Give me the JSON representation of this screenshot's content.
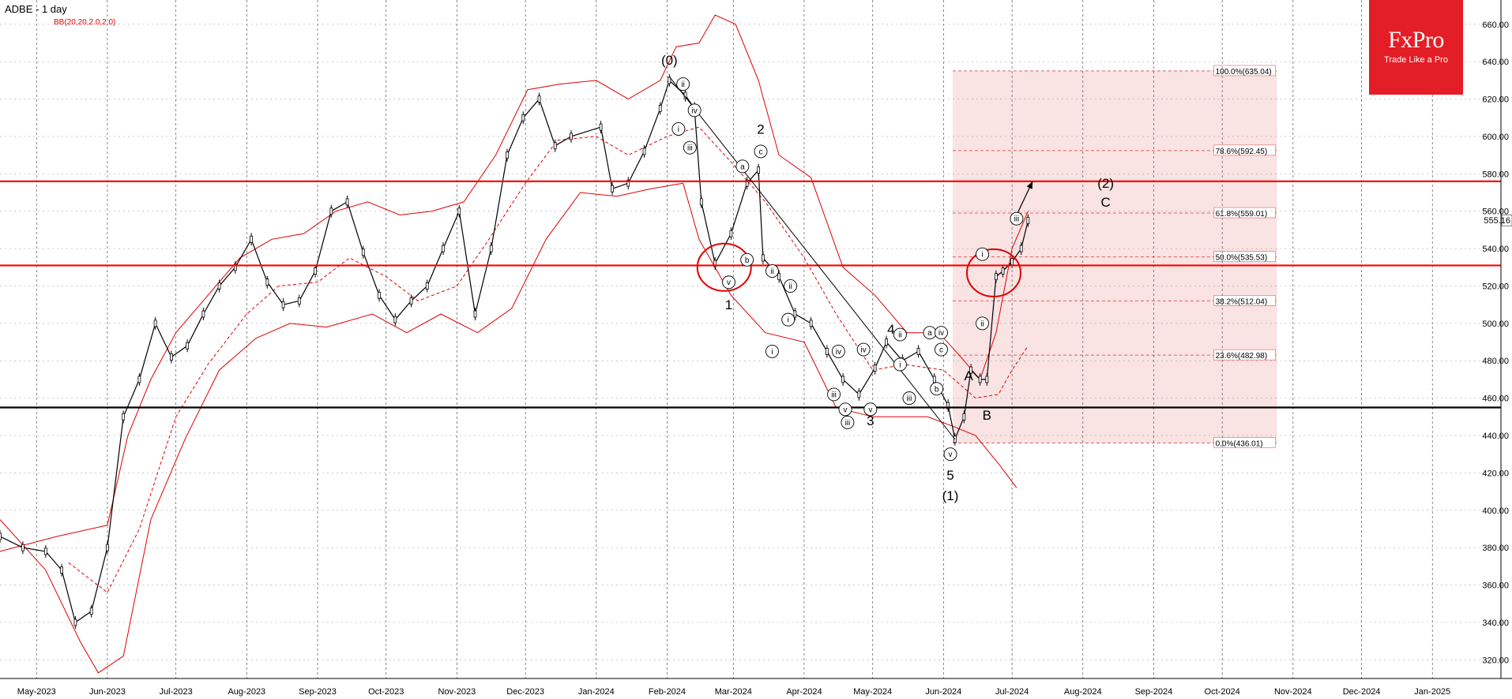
{
  "header": {
    "title": "ADBE - 1 day",
    "indicator": "BB(20,20,2.0,2.0)"
  },
  "logo": {
    "name": "FxPro",
    "tagline": "Trade Like a Pro"
  },
  "colors": {
    "price": "#000000",
    "bands": "#e00000",
    "fib_zone": "#f8dede",
    "level": "#ff0000",
    "support": "#000000"
  },
  "chart_data": {
    "type": "line",
    "title": "ADBE - 1 day",
    "indicator": "BB(20,20,2.0,2.0)",
    "x_axis": {
      "labels": [
        "May-2023",
        "Jun-2023",
        "Jul-2023",
        "Aug-2023",
        "Sep-2023",
        "Oct-2023",
        "Nov-2023",
        "Dec-2023",
        "Jan-2024",
        "Feb-2024",
        "Mar-2024",
        "Apr-2024",
        "May-2024",
        "Jun-2024",
        "Jul-2024",
        "Aug-2024",
        "Sep-2024",
        "Oct-2024",
        "Nov-2024",
        "Dec-2024",
        "Jan-2025"
      ],
      "range": [
        "2023-04-15",
        "2025-01-31"
      ]
    },
    "y_axis": {
      "ticks": [
        320,
        340,
        360,
        380,
        400,
        420,
        440,
        460,
        480,
        500,
        520,
        540,
        560,
        580,
        600,
        620,
        640,
        660
      ],
      "range": [
        310,
        673
      ],
      "tick_format": "{v}.00",
      "side": "right"
    },
    "grid": true,
    "last_price": {
      "value": 555.16,
      "label": "555.16"
    },
    "series": [
      {
        "kind": "price",
        "points": [
          [
            "2023-04-15",
            386
          ],
          [
            "2023-04-25",
            380
          ],
          [
            "2023-05-05",
            378
          ],
          [
            "2023-05-12",
            368
          ],
          [
            "2023-05-18",
            340
          ],
          [
            "2023-05-25",
            346
          ],
          [
            "2023-06-01",
            380
          ],
          [
            "2023-06-08",
            450
          ],
          [
            "2023-06-15",
            470
          ],
          [
            "2023-06-22",
            500
          ],
          [
            "2023-06-29",
            482
          ],
          [
            "2023-07-06",
            488
          ],
          [
            "2023-07-13",
            505
          ],
          [
            "2023-07-20",
            520
          ],
          [
            "2023-07-27",
            530
          ],
          [
            "2023-08-03",
            545
          ],
          [
            "2023-08-10",
            522
          ],
          [
            "2023-08-17",
            510
          ],
          [
            "2023-08-24",
            512
          ],
          [
            "2023-08-31",
            528
          ],
          [
            "2023-09-07",
            560
          ],
          [
            "2023-09-14",
            565
          ],
          [
            "2023-09-21",
            538
          ],
          [
            "2023-09-28",
            515
          ],
          [
            "2023-10-05",
            502
          ],
          [
            "2023-10-12",
            512
          ],
          [
            "2023-10-19",
            520
          ],
          [
            "2023-10-26",
            540
          ],
          [
            "2023-11-02",
            560
          ],
          [
            "2023-11-09",
            505
          ],
          [
            "2023-11-16",
            540
          ],
          [
            "2023-11-23",
            590
          ],
          [
            "2023-11-30",
            610
          ],
          [
            "2023-12-07",
            620
          ],
          [
            "2023-12-14",
            595
          ],
          [
            "2023-12-21",
            600
          ],
          [
            "2024-01-03",
            605
          ],
          [
            "2024-01-08",
            572
          ],
          [
            "2024-01-15",
            575
          ],
          [
            "2024-01-22",
            592
          ],
          [
            "2024-01-29",
            615
          ],
          [
            "2024-02-02",
            630
          ],
          [
            "2024-02-09",
            622
          ],
          [
            "2024-02-13",
            615
          ],
          [
            "2024-02-16",
            565
          ],
          [
            "2024-02-22",
            532
          ],
          [
            "2024-02-29",
            548
          ],
          [
            "2024-03-07",
            575
          ],
          [
            "2024-03-12",
            582
          ],
          [
            "2024-03-14",
            535
          ],
          [
            "2024-03-21",
            525
          ],
          [
            "2024-03-28",
            505
          ],
          [
            "2024-04-04",
            500
          ],
          [
            "2024-04-11",
            485
          ],
          [
            "2024-04-18",
            470
          ],
          [
            "2024-04-25",
            462
          ],
          [
            "2024-05-02",
            476
          ],
          [
            "2024-05-07",
            490
          ],
          [
            "2024-05-14",
            480
          ],
          [
            "2024-05-21",
            485
          ],
          [
            "2024-05-28",
            470
          ],
          [
            "2024-06-03",
            456
          ],
          [
            "2024-06-06",
            438
          ],
          [
            "2024-06-10",
            450
          ],
          [
            "2024-06-13",
            475
          ],
          [
            "2024-06-17",
            470
          ],
          [
            "2024-06-20",
            470
          ],
          [
            "2024-06-24",
            525
          ],
          [
            "2024-06-27",
            528
          ],
          [
            "2024-07-01",
            533
          ],
          [
            "2024-07-05",
            540
          ],
          [
            "2024-07-08",
            555
          ]
        ]
      },
      {
        "kind": "upper_band",
        "points": [
          [
            "2023-04-15",
            378
          ],
          [
            "2023-05-10",
            386
          ],
          [
            "2023-06-01",
            392
          ],
          [
            "2023-06-10",
            440
          ],
          [
            "2023-06-20",
            470
          ],
          [
            "2023-07-01",
            495
          ],
          [
            "2023-07-15",
            515
          ],
          [
            "2023-07-29",
            535
          ],
          [
            "2023-08-12",
            545
          ],
          [
            "2023-08-26",
            548
          ],
          [
            "2023-09-09",
            560
          ],
          [
            "2023-09-23",
            565
          ],
          [
            "2023-10-07",
            558
          ],
          [
            "2023-10-21",
            560
          ],
          [
            "2023-11-04",
            565
          ],
          [
            "2023-11-18",
            590
          ],
          [
            "2023-12-02",
            625
          ],
          [
            "2023-12-16",
            628
          ],
          [
            "2024-01-01",
            630
          ],
          [
            "2024-01-15",
            620
          ],
          [
            "2024-01-29",
            630
          ],
          [
            "2024-02-05",
            648
          ],
          [
            "2024-02-15",
            650
          ],
          [
            "2024-02-22",
            665
          ],
          [
            "2024-03-02",
            660
          ],
          [
            "2024-03-12",
            630
          ],
          [
            "2024-03-21",
            590
          ],
          [
            "2024-04-04",
            578
          ],
          [
            "2024-04-18",
            530
          ],
          [
            "2024-05-02",
            515
          ],
          [
            "2024-05-16",
            495
          ],
          [
            "2024-05-30",
            495
          ],
          [
            "2024-06-10",
            480
          ],
          [
            "2024-06-17",
            470
          ],
          [
            "2024-06-24",
            495
          ],
          [
            "2024-07-01",
            540
          ],
          [
            "2024-07-08",
            560
          ]
        ]
      },
      {
        "kind": "middle_band",
        "points": [
          [
            "2023-05-15",
            372
          ],
          [
            "2023-06-01",
            356
          ],
          [
            "2023-06-15",
            390
          ],
          [
            "2023-07-01",
            450
          ],
          [
            "2023-07-15",
            478
          ],
          [
            "2023-08-01",
            505
          ],
          [
            "2023-08-15",
            520
          ],
          [
            "2023-09-01",
            522
          ],
          [
            "2023-09-15",
            535
          ],
          [
            "2023-10-01",
            525
          ],
          [
            "2023-10-15",
            512
          ],
          [
            "2023-11-01",
            520
          ],
          [
            "2023-11-15",
            545
          ],
          [
            "2023-12-01",
            575
          ],
          [
            "2023-12-15",
            598
          ],
          [
            "2024-01-01",
            600
          ],
          [
            "2024-01-15",
            590
          ],
          [
            "2024-02-01",
            600
          ],
          [
            "2024-02-15",
            605
          ],
          [
            "2024-03-01",
            585
          ],
          [
            "2024-03-15",
            565
          ],
          [
            "2024-04-01",
            535
          ],
          [
            "2024-04-15",
            505
          ],
          [
            "2024-05-01",
            475
          ],
          [
            "2024-05-15",
            478
          ],
          [
            "2024-06-01",
            475
          ],
          [
            "2024-06-15",
            460
          ],
          [
            "2024-06-25",
            462
          ],
          [
            "2024-07-01",
            475
          ],
          [
            "2024-07-08",
            488
          ]
        ]
      },
      {
        "kind": "lower_band",
        "points": [
          [
            "2023-04-15",
            395
          ],
          [
            "2023-05-05",
            368
          ],
          [
            "2023-05-20",
            330
          ],
          [
            "2023-05-28",
            313
          ],
          [
            "2023-06-08",
            322
          ],
          [
            "2023-06-20",
            395
          ],
          [
            "2023-07-05",
            438
          ],
          [
            "2023-07-20",
            475
          ],
          [
            "2023-08-05",
            492
          ],
          [
            "2023-08-20",
            500
          ],
          [
            "2023-09-05",
            498
          ],
          [
            "2023-09-25",
            505
          ],
          [
            "2023-10-10",
            495
          ],
          [
            "2023-10-25",
            505
          ],
          [
            "2023-11-10",
            495
          ],
          [
            "2023-11-25",
            508
          ],
          [
            "2023-12-10",
            545
          ],
          [
            "2023-12-25",
            570
          ],
          [
            "2024-01-10",
            568
          ],
          [
            "2024-01-25",
            572
          ],
          [
            "2024-02-08",
            575
          ],
          [
            "2024-02-15",
            545
          ],
          [
            "2024-02-29",
            515
          ],
          [
            "2024-03-15",
            495
          ],
          [
            "2024-04-01",
            490
          ],
          [
            "2024-04-15",
            455
          ],
          [
            "2024-05-01",
            450
          ],
          [
            "2024-05-15",
            450
          ],
          [
            "2024-05-25",
            450
          ],
          [
            "2024-06-05",
            445
          ],
          [
            "2024-06-15",
            440
          ],
          [
            "2024-06-25",
            425
          ],
          [
            "2024-07-03",
            412
          ]
        ]
      }
    ],
    "horizontal_levels": [
      {
        "value": 576,
        "color": "#ff0000"
      },
      {
        "value": 531,
        "color": "#ff0000"
      },
      {
        "value": 455,
        "color": "#000000"
      }
    ],
    "fib_zone": {
      "start": "2024-06-05",
      "end": "2024-10-25",
      "from": 436.01,
      "to": 635.04,
      "levels": [
        {
          "value": 635.04,
          "label": "100.0%(635.04)"
        },
        {
          "value": 592.45,
          "label": "78.6%(592.45)"
        },
        {
          "value": 559.01,
          "label": "61.8%(559.01)"
        },
        {
          "value": 535.53,
          "label": "50.0%(535.53)"
        },
        {
          "value": 512.04,
          "label": "38.2%(512.04)"
        },
        {
          "value": 482.98,
          "label": "23.6%(482.98)"
        },
        {
          "value": 436.01,
          "label": "0.0%(436.01)"
        }
      ]
    },
    "trendline": {
      "from": [
        "2024-02-02",
        632
      ],
      "to": [
        "2024-06-06",
        438
      ]
    },
    "arrow": {
      "from": [
        "2024-07-03",
        558
      ],
      "to": [
        "2024-07-10",
        576
      ]
    },
    "highlight_circles": [
      {
        "x": "2024-02-26",
        "y": 530
      },
      {
        "x": "2024-06-23",
        "y": 527
      }
    ],
    "wave_labels": [
      {
        "text": "(0)",
        "x": "2024-02-02",
        "y": 641,
        "style": "plain"
      },
      {
        "text": "ii",
        "x": "2024-02-08",
        "y": 628,
        "style": "circle"
      },
      {
        "text": "iv",
        "x": "2024-02-13",
        "y": 614,
        "style": "circle"
      },
      {
        "text": "i",
        "x": "2024-02-06",
        "y": 604,
        "style": "circle"
      },
      {
        "text": "iii",
        "x": "2024-02-11",
        "y": 594,
        "style": "circle"
      },
      {
        "text": "v",
        "x": "2024-02-28",
        "y": 522,
        "style": "circle"
      },
      {
        "text": "1",
        "x": "2024-02-28",
        "y": 510,
        "style": "plain"
      },
      {
        "text": "2",
        "x": "2024-03-13",
        "y": 604,
        "style": "plain"
      },
      {
        "text": "c",
        "x": "2024-03-13",
        "y": 592,
        "style": "circle"
      },
      {
        "text": "a",
        "x": "2024-03-05",
        "y": 584,
        "style": "circle"
      },
      {
        "text": "b",
        "x": "2024-03-07",
        "y": 534,
        "style": "circle"
      },
      {
        "text": "ii",
        "x": "2024-03-18",
        "y": 528,
        "style": "circle"
      },
      {
        "text": "ii",
        "x": "2024-03-26",
        "y": 520,
        "style": "circle"
      },
      {
        "text": "i",
        "x": "2024-03-25",
        "y": 502,
        "style": "circle"
      },
      {
        "text": "i",
        "x": "2024-03-18",
        "y": 485,
        "style": "circle"
      },
      {
        "text": "iv",
        "x": "2024-04-16",
        "y": 485,
        "style": "circle"
      },
      {
        "text": "iv",
        "x": "2024-04-27",
        "y": 486,
        "style": "circle"
      },
      {
        "text": "iii",
        "x": "2024-04-14",
        "y": 462,
        "style": "circle"
      },
      {
        "text": "v",
        "x": "2024-04-19",
        "y": 454,
        "style": "circle"
      },
      {
        "text": "iii",
        "x": "2024-04-20",
        "y": 447,
        "style": "circle"
      },
      {
        "text": "v",
        "x": "2024-04-30",
        "y": 454,
        "style": "circle"
      },
      {
        "text": "3",
        "x": "2024-04-30",
        "y": 448,
        "style": "plain"
      },
      {
        "text": "4",
        "x": "2024-05-09",
        "y": 497,
        "style": "plain"
      },
      {
        "text": "ii",
        "x": "2024-05-13",
        "y": 494,
        "style": "circle"
      },
      {
        "text": "i",
        "x": "2024-05-13",
        "y": 478,
        "style": "circle"
      },
      {
        "text": "iii",
        "x": "2024-05-17",
        "y": 460,
        "style": "circle"
      },
      {
        "text": "a",
        "x": "2024-05-26",
        "y": 495,
        "style": "circle"
      },
      {
        "text": "iv",
        "x": "2024-05-31",
        "y": 495,
        "style": "circle"
      },
      {
        "text": "c",
        "x": "2024-05-31",
        "y": 486,
        "style": "circle"
      },
      {
        "text": "b",
        "x": "2024-05-29",
        "y": 465,
        "style": "circle"
      },
      {
        "text": "A",
        "x": "2024-06-12",
        "y": 472,
        "style": "plain"
      },
      {
        "text": "B",
        "x": "2024-06-20",
        "y": 451,
        "style": "plain"
      },
      {
        "text": "v",
        "x": "2024-06-04",
        "y": 430,
        "style": "circle"
      },
      {
        "text": "5",
        "x": "2024-06-04",
        "y": 419,
        "style": "plain"
      },
      {
        "text": "(1)",
        "x": "2024-06-04",
        "y": 408,
        "style": "plain"
      },
      {
        "text": "i",
        "x": "2024-06-18",
        "y": 537,
        "style": "circle"
      },
      {
        "text": "ii",
        "x": "2024-06-18",
        "y": 500,
        "style": "circle"
      },
      {
        "text": "iii",
        "x": "2024-07-03",
        "y": 556,
        "style": "circle"
      },
      {
        "text": "(2)",
        "x": "2024-08-11",
        "y": 575,
        "style": "plain"
      },
      {
        "text": "C",
        "x": "2024-08-11",
        "y": 565,
        "style": "plain"
      }
    ]
  }
}
